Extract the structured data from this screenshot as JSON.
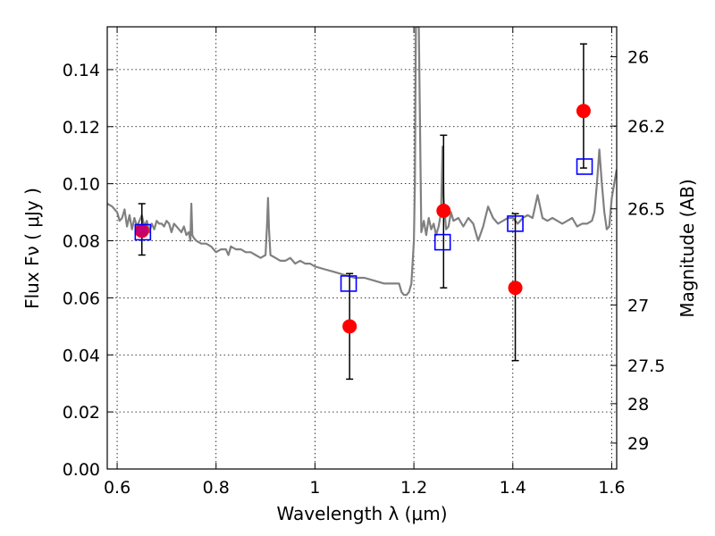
{
  "chart_data": {
    "type": "scatter",
    "title": "",
    "xlabel": "Wavelength  λ (μm)",
    "ylabel": "Flux  Fν  ( μJy )",
    "y2label": "Magnitude (AB)",
    "xlim": [
      0.58,
      1.61
    ],
    "ylim": [
      0.0,
      0.155
    ],
    "grid": true,
    "grid_style": "dotted",
    "x_ticks": [
      0.6,
      0.8,
      1.0,
      1.2,
      1.4,
      1.6
    ],
    "x_tick_labels": [
      "0.6",
      "0.8",
      "1",
      "1.2",
      "1.4",
      "1.6"
    ],
    "y_ticks": [
      0.0,
      0.02,
      0.04,
      0.06,
      0.08,
      0.1,
      0.12,
      0.14
    ],
    "y_tick_labels": [
      "0.00",
      "0.02",
      "0.04",
      "0.06",
      "0.08",
      "0.10",
      "0.12",
      "0.14"
    ],
    "y2_ticks": [
      {
        "label": "26",
        "flux": 0.1445
      },
      {
        "label": "26.2",
        "flux": 0.1202
      },
      {
        "label": "26.5",
        "flux": 0.0912
      },
      {
        "label": "27",
        "flux": 0.0575
      },
      {
        "label": "27.5",
        "flux": 0.0363
      },
      {
        "label": "28",
        "flux": 0.0229
      },
      {
        "label": "29",
        "flux": 0.0091
      }
    ],
    "colors": {
      "spectrum": "#808080",
      "observed": "#ff0000",
      "model": "#0000ff",
      "errorbar": "#000000"
    },
    "series": [
      {
        "kind": "line",
        "x": [
          0.58,
          0.59,
          0.6,
          0.605,
          0.61,
          0.615,
          0.62,
          0.625,
          0.63,
          0.635,
          0.64,
          0.645,
          0.65,
          0.655,
          0.66,
          0.665,
          0.67,
          0.675,
          0.68,
          0.685,
          0.69,
          0.695,
          0.7,
          0.705,
          0.71,
          0.715,
          0.72,
          0.725,
          0.73,
          0.735,
          0.74,
          0.745,
          0.748,
          0.75,
          0.752,
          0.755,
          0.76,
          0.77,
          0.78,
          0.79,
          0.8,
          0.81,
          0.82,
          0.825,
          0.83,
          0.84,
          0.85,
          0.86,
          0.87,
          0.88,
          0.89,
          0.9,
          0.903,
          0.905,
          0.907,
          0.91,
          0.92,
          0.93,
          0.94,
          0.95,
          0.96,
          0.97,
          0.98,
          0.99,
          1.0,
          1.02,
          1.04,
          1.06,
          1.08,
          1.1,
          1.12,
          1.14,
          1.16,
          1.17,
          1.175,
          1.18,
          1.185,
          1.19,
          1.195,
          1.2,
          1.202,
          1.204,
          1.206,
          1.208,
          1.21,
          1.215,
          1.22,
          1.225,
          1.23,
          1.235,
          1.24,
          1.245,
          1.25,
          1.255,
          1.258,
          1.26,
          1.265,
          1.27,
          1.275,
          1.28,
          1.29,
          1.3,
          1.31,
          1.32,
          1.33,
          1.34,
          1.35,
          1.36,
          1.37,
          1.38,
          1.39,
          1.4,
          1.41,
          1.42,
          1.43,
          1.44,
          1.45,
          1.46,
          1.47,
          1.48,
          1.49,
          1.5,
          1.51,
          1.52,
          1.53,
          1.54,
          1.55,
          1.56,
          1.565,
          1.57,
          1.575,
          1.58,
          1.585,
          1.59,
          1.595,
          1.6,
          1.61
        ],
        "y": [
          0.093,
          0.092,
          0.09,
          0.087,
          0.088,
          0.091,
          0.085,
          0.089,
          0.084,
          0.088,
          0.085,
          0.087,
          0.089,
          0.085,
          0.087,
          0.083,
          0.086,
          0.084,
          0.087,
          0.086,
          0.086,
          0.085,
          0.087,
          0.086,
          0.083,
          0.086,
          0.085,
          0.084,
          0.083,
          0.085,
          0.082,
          0.083,
          0.08,
          0.093,
          0.082,
          0.081,
          0.08,
          0.079,
          0.079,
          0.078,
          0.076,
          0.077,
          0.077,
          0.075,
          0.078,
          0.077,
          0.077,
          0.076,
          0.076,
          0.075,
          0.074,
          0.075,
          0.085,
          0.095,
          0.084,
          0.075,
          0.074,
          0.073,
          0.073,
          0.074,
          0.072,
          0.073,
          0.072,
          0.072,
          0.071,
          0.07,
          0.069,
          0.068,
          0.067,
          0.067,
          0.066,
          0.065,
          0.065,
          0.065,
          0.062,
          0.061,
          0.061,
          0.062,
          0.065,
          0.08,
          0.1,
          0.155,
          0.155,
          0.155,
          0.155,
          0.083,
          0.087,
          0.082,
          0.088,
          0.084,
          0.086,
          0.082,
          0.085,
          0.09,
          0.113,
          0.095,
          0.084,
          0.085,
          0.09,
          0.087,
          0.088,
          0.085,
          0.088,
          0.086,
          0.08,
          0.085,
          0.092,
          0.088,
          0.086,
          0.087,
          0.088,
          0.088,
          0.086,
          0.088,
          0.089,
          0.088,
          0.096,
          0.088,
          0.087,
          0.088,
          0.087,
          0.086,
          0.087,
          0.088,
          0.085,
          0.086,
          0.086,
          0.087,
          0.09,
          0.1,
          0.112,
          0.1,
          0.09,
          0.084,
          0.085,
          0.095,
          0.105
        ]
      },
      {
        "kind": "scatter-errorbar",
        "x": [
          0.65,
          1.07,
          1.26,
          1.405,
          1.543
        ],
        "y": [
          0.0835,
          0.05,
          0.0905,
          0.0635,
          0.1255
        ],
        "yerr_low": [
          0.075,
          0.0315,
          0.0635,
          0.038,
          0.1055
        ],
        "yerr_high": [
          0.093,
          0.0685,
          0.117,
          0.0895,
          0.149
        ]
      },
      {
        "kind": "scatter",
        "x": [
          0.652,
          1.068,
          1.258,
          1.405,
          1.545
        ],
        "y": [
          0.083,
          0.065,
          0.0795,
          0.086,
          0.106
        ]
      }
    ]
  }
}
